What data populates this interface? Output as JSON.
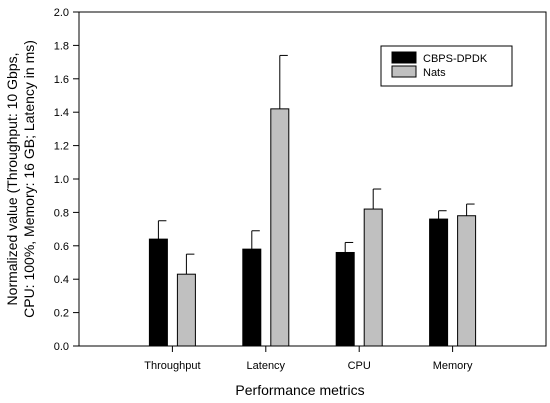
{
  "colors": {
    "series_1": "#000000",
    "series_2": "#c0c0c0",
    "axis": "#000000",
    "background": "#ffffff"
  },
  "chart_data": {
    "type": "bar",
    "categories": [
      "Throughput",
      "Latency",
      "CPU",
      "Memory"
    ],
    "series": [
      {
        "name": "CBPS-DPDK",
        "values": [
          0.64,
          0.58,
          0.56,
          0.76
        ],
        "errors": [
          0.11,
          0.11,
          0.06,
          0.05
        ]
      },
      {
        "name": "Nats",
        "values": [
          0.43,
          1.42,
          0.82,
          0.78
        ],
        "errors": [
          0.12,
          0.32,
          0.12,
          0.07
        ]
      }
    ],
    "title": "",
    "xlabel": "Performance metrics",
    "ylabel_lines": [
      "Normalized value (Throughput: 10 Gbps,",
      "CPU: 100%, Memory: 16 GB; Latency in ms)"
    ],
    "ylim": [
      0,
      2.0
    ],
    "yticks": [
      "0.0",
      "0.2",
      "0.4",
      "0.6",
      "0.8",
      "1.0",
      "1.2",
      "1.4",
      "1.6",
      "1.8",
      "2.0"
    ],
    "grid": false,
    "error_bars": "upper",
    "legend_position": "top-right"
  }
}
